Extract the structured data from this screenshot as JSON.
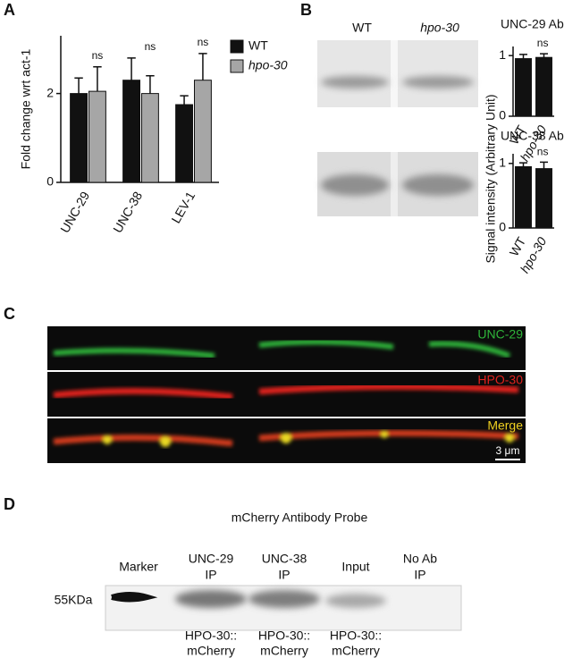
{
  "panel_labels": [
    "A",
    "B",
    "C",
    "D"
  ],
  "chart_data": [
    {
      "type": "bar",
      "ylabel": "Fold change wrt act-1",
      "categories": [
        "UNC-29",
        "UNC-38",
        "LEV-1"
      ],
      "series": [
        {
          "name": "WT",
          "color": "#111111",
          "values": [
            2.0,
            2.3,
            1.75
          ],
          "errors": [
            0.35,
            0.5,
            0.2
          ]
        },
        {
          "name": "hpo-30",
          "color": "#a6a6a6",
          "values": [
            2.05,
            2.0,
            2.3
          ],
          "errors": [
            0.55,
            0.4,
            0.6
          ]
        }
      ],
      "significance": [
        "ns",
        "ns",
        "ns"
      ],
      "ylim": [
        0,
        3.3
      ],
      "yticks": [
        0,
        2
      ]
    },
    {
      "type": "bar",
      "title": "UNC-29 Ab",
      "categories": [
        "WT",
        "hpo-30"
      ],
      "color": "#111111",
      "values": [
        0.95,
        0.97
      ],
      "errors": [
        0.07,
        0.06
      ],
      "significance": [
        "ns"
      ],
      "ylim": [
        0,
        1.15
      ],
      "yticks": [
        0,
        1
      ]
    },
    {
      "type": "bar",
      "title": "UNC-38 Ab",
      "categories": [
        "WT",
        "hpo-30"
      ],
      "color": "#111111",
      "values": [
        0.95,
        0.92
      ],
      "errors": [
        0.06,
        0.1
      ],
      "significance": [
        "ns"
      ],
      "ylim": [
        0,
        1.15
      ],
      "yticks": [
        0,
        1
      ]
    }
  ],
  "panel_b": {
    "lanes": [
      "WT",
      "hpo-30"
    ],
    "ylabel": "Signal intensity (Arbitrary Unit)"
  },
  "panel_c": {
    "channels": [
      "UNC-29",
      "HPO-30",
      "Merge"
    ],
    "scale_bar": "3 μm"
  },
  "panel_d": {
    "title": "mCherry Antibody Probe",
    "marker_size": "55KDa",
    "lanes": [
      [
        "Marker"
      ],
      [
        "UNC-29",
        "IP"
      ],
      [
        "UNC-38",
        "IP"
      ],
      [
        "Input"
      ],
      [
        "No Ab",
        "IP"
      ]
    ],
    "samples": [
      [
        "HPO-30::",
        "mCherry"
      ],
      [
        "HPO-30::",
        "mCherry"
      ],
      [
        "HPO-30::",
        "mCherry"
      ]
    ]
  }
}
